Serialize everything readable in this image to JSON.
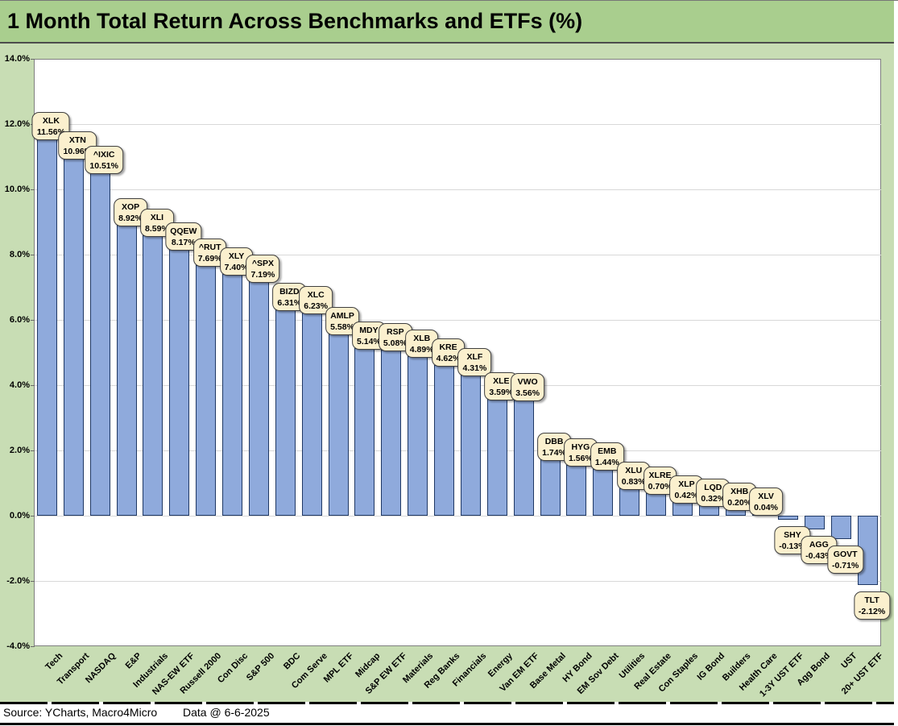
{
  "title": "1 Month Total Return Across Benchmarks and ETFs (%)",
  "footer": {
    "source": "Source: YCharts, Macro4Micro",
    "data_date": "Data @ 6-6-2025"
  },
  "colors": {
    "title_band": "#A9CE8E",
    "chart_bg": "#C8DDB4",
    "bar_fill": "#8FAADC",
    "bar_border": "#1F3864",
    "callout_fill": "#FBF0CE",
    "callout_border": "#3F3F3F",
    "gridline": "#D8D8D8",
    "plot_border": "#7F7F7F"
  },
  "chart_data": {
    "type": "bar",
    "title": "1 Month Total Return Across Benchmarks and ETFs (%)",
    "categories": [
      "Tech",
      "Transport",
      "NASDAQ",
      "E&P",
      "Industrials",
      "NAS-EW ETF",
      "Russell 2000",
      "Con Disc",
      "S&P 500",
      "BDC",
      "Com Serve",
      "MPL ETF",
      "Midcap",
      "S&P EW ETF",
      "Materials",
      "Reg Banks",
      "Financials",
      "Energy",
      "Van EM ETF",
      "Base Metal",
      "HY Bond",
      "EM Sov Debt",
      "Utilities",
      "Real Estate",
      "Con Staples",
      "IG Bond",
      "Builders",
      "Health Care",
      "1-3Y UST ETF",
      "Agg Bond",
      "UST",
      "20+ UST ETF"
    ],
    "tickers": [
      "XLK",
      "XTN",
      "^IXIC",
      "XOP",
      "XLI",
      "QQEW",
      "^RUT",
      "XLY",
      "^SPX",
      "BIZD",
      "XLC",
      "AMLP",
      "MDY",
      "RSP",
      "XLB",
      "KRE",
      "XLF",
      "XLE",
      "VWO",
      "DBB",
      "HYG",
      "EMB",
      "XLU",
      "XLRE",
      "XLP",
      "LQD",
      "XHB",
      "XLV",
      "SHY",
      "AGG",
      "GOVT",
      "TLT"
    ],
    "values": [
      11.56,
      10.96,
      10.51,
      8.92,
      8.59,
      8.17,
      7.69,
      7.4,
      7.19,
      6.31,
      6.23,
      5.58,
      5.14,
      5.08,
      4.89,
      4.62,
      4.31,
      3.59,
      3.56,
      1.74,
      1.56,
      1.44,
      0.83,
      0.7,
      0.42,
      0.32,
      0.2,
      0.04,
      -0.13,
      -0.43,
      -0.71,
      -2.12
    ],
    "value_labels": [
      "11.56%",
      "10.96%",
      "10.51%",
      "8.92%",
      "8.59%",
      "8.17%",
      "7.69%",
      "7.40%",
      "7.19%",
      "6.31%",
      "6.23%",
      "5.58%",
      "5.14%",
      "5.08%",
      "4.89%",
      "4.62%",
      "4.31%",
      "3.59%",
      "3.56%",
      "1.74%",
      "1.56%",
      "1.44%",
      "0.83%",
      "0.70%",
      "0.42%",
      "0.32%",
      "0.20%",
      "0.04%",
      "-0.13%",
      "-0.43%",
      "-0.71%",
      "-2.12%"
    ],
    "xlabel": "",
    "ylabel": "",
    "ylim": [
      -4,
      14
    ],
    "ytick_step": 2,
    "ytick_labels": [
      "14.0%",
      "12.0%",
      "10.0%",
      "8.0%",
      "6.0%",
      "4.0%",
      "2.0%",
      "0.0%",
      "-2.0%",
      "-4.0%"
    ],
    "grid": true,
    "legend": "none"
  }
}
